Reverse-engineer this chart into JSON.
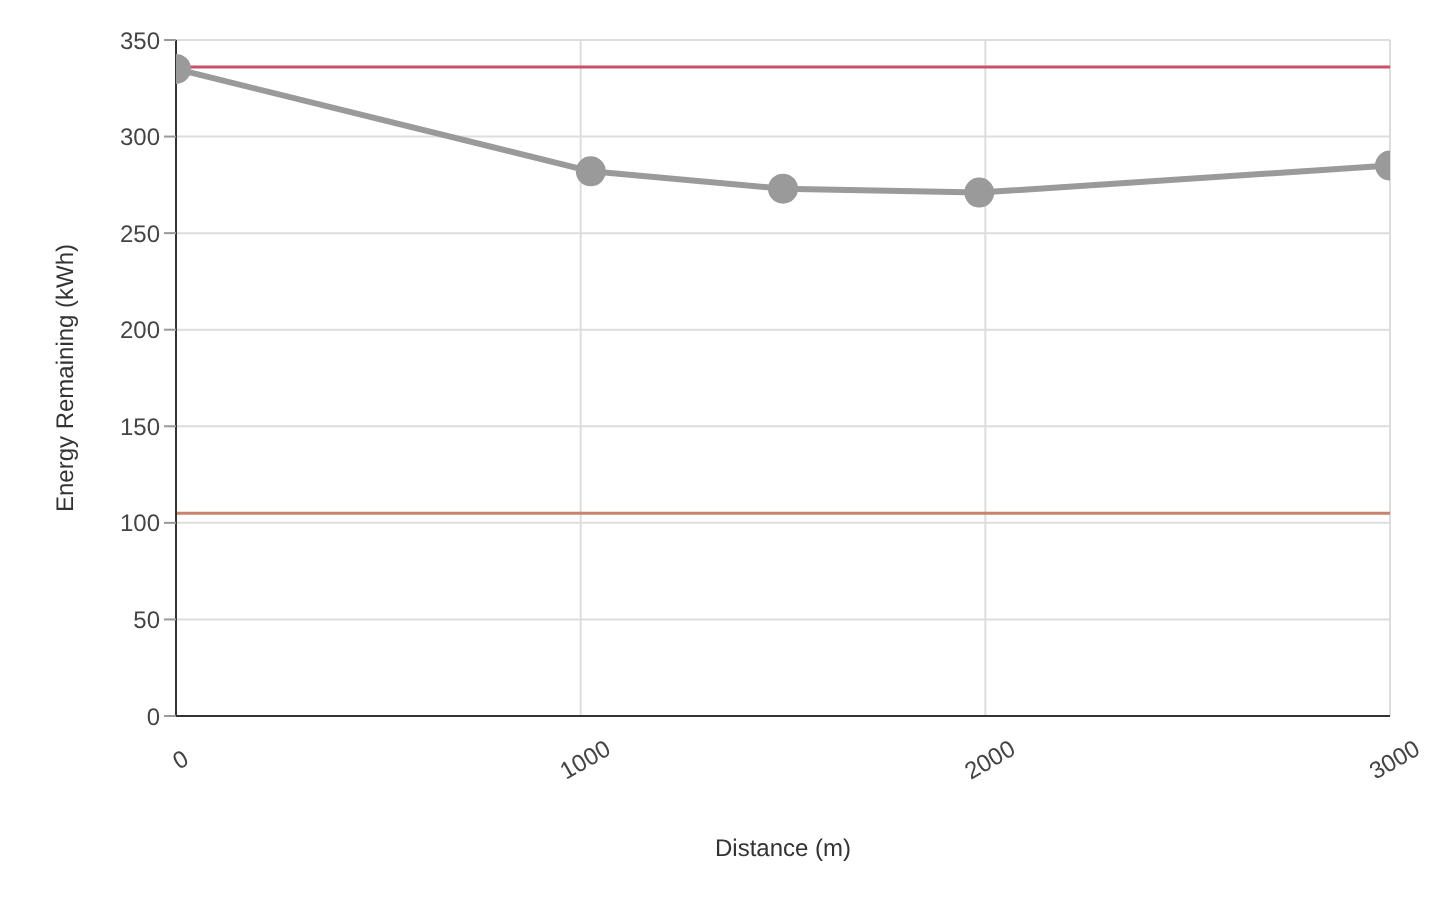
{
  "chart_data": {
    "type": "line",
    "xlabel": "Distance (m)",
    "ylabel": "Energy Remaining (kWh)",
    "x": [
      0,
      1025,
      1500,
      1985,
      3000
    ],
    "series": [
      {
        "color": "#9a9a9a",
        "values": [
          335,
          282,
          273,
          271,
          285
        ]
      }
    ],
    "xlim": [
      0,
      3000
    ],
    "xticks": [
      0,
      1000,
      2000,
      3000
    ],
    "ylim": [
      0,
      350
    ],
    "yticks": [
      0,
      50,
      100,
      150,
      200,
      250,
      300,
      350
    ],
    "grid": true,
    "marker": "circle",
    "line_style": "solid",
    "ref_lines": [
      {
        "axis": "y",
        "value": 336,
        "color": "#c9506a"
      },
      {
        "axis": "y",
        "value": 105,
        "color": "#c8826e"
      }
    ]
  }
}
